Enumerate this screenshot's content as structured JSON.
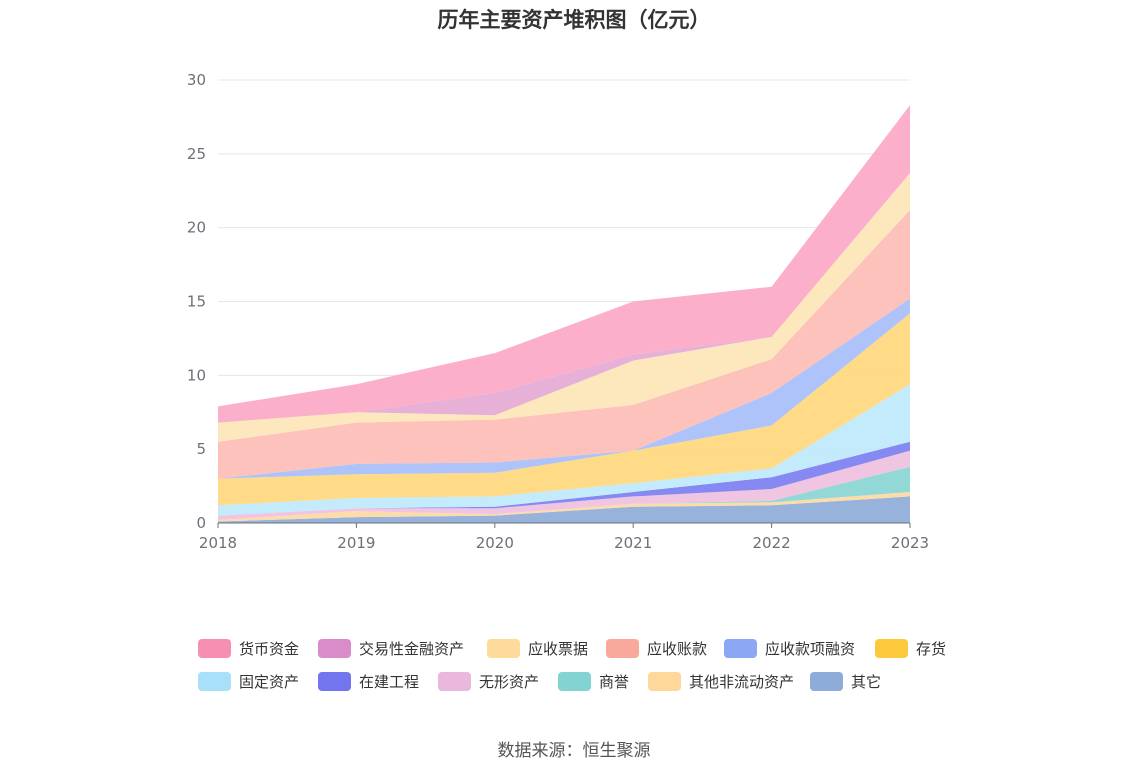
{
  "chart_data": {
    "type": "area",
    "stacked": true,
    "title": "历年主要资产堆积图（亿元）",
    "xlabel": "",
    "ylabel": "",
    "x": [
      "2018",
      "2019",
      "2020",
      "2021",
      "2022",
      "2023"
    ],
    "ylim": [
      0,
      30
    ],
    "yticks": [
      0,
      5,
      10,
      15,
      20,
      25,
      30
    ],
    "grid": true,
    "legend_position": "bottom",
    "series": [
      {
        "name": "其它",
        "color": "#8eacd8",
        "values": [
          0.1,
          0.4,
          0.5,
          1.1,
          1.2,
          1.8
        ]
      },
      {
        "name": "其他非流动资产",
        "color": "#fdd9a3",
        "values": [
          0.1,
          0.4,
          0.1,
          0.2,
          0.2,
          0.3
        ]
      },
      {
        "name": "商誉",
        "color": "#88d5d4",
        "values": [
          0.0,
          0.0,
          0.0,
          0.0,
          0.1,
          1.7
        ]
      },
      {
        "name": "无形资产",
        "color": "#efc0df",
        "values": [
          0.3,
          0.2,
          0.4,
          0.5,
          0.8,
          1.1
        ]
      },
      {
        "name": "在建工程",
        "color": "#7b7ff0",
        "values": [
          0.0,
          0.0,
          0.1,
          0.3,
          0.8,
          0.6
        ]
      },
      {
        "name": "固定资产",
        "color": "#bfe9fb",
        "values": [
          0.7,
          0.7,
          0.7,
          0.6,
          0.6,
          3.9
        ]
      },
      {
        "name": "存货",
        "color": "#ffd77d",
        "values": [
          1.8,
          1.6,
          1.6,
          2.2,
          2.9,
          4.8
        ]
      },
      {
        "name": "应收款项融资",
        "color": "#a6bef9",
        "values": [
          0.0,
          0.7,
          0.7,
          0.0,
          2.2,
          1.0
        ]
      },
      {
        "name": "应收账款",
        "color": "#fdbdb5",
        "values": [
          2.5,
          2.8,
          2.9,
          3.1,
          2.3,
          6.0
        ]
      },
      {
        "name": "应收票据",
        "color": "#fde6b9",
        "values": [
          1.3,
          0.7,
          0.3,
          3.0,
          1.5,
          2.5
        ]
      },
      {
        "name": "交易性金融资产",
        "color": "#e4a9d4",
        "values": [
          0.0,
          0.0,
          1.5,
          0.4,
          0.0,
          0.0
        ]
      },
      {
        "name": "货币资金",
        "color": "#fba8c5",
        "values": [
          1.1,
          1.9,
          2.7,
          3.6,
          3.4,
          4.6
        ]
      }
    ]
  },
  "legend_order": [
    "货币资金",
    "交易性金融资产",
    "应收票据",
    "应收账款",
    "应收款项融资",
    "存货",
    "固定资产",
    "在建工程",
    "无形资产",
    "商誉",
    "其他非流动资产",
    "其它"
  ],
  "legend_colors": {
    "货币资金": "#f78fb3",
    "交易性金融资产": "#d98cc7",
    "应收票据": "#fedb9b",
    "应收账款": "#f9a89c",
    "应收款项融资": "#8ca8f5",
    "存货": "#fdc93c",
    "固定资产": "#a8e0f9",
    "在建工程": "#7375ee",
    "无形资产": "#eab8dc",
    "商誉": "#84d3d3",
    "其他非流动资产": "#fed79a",
    "其它": "#8eacd8"
  },
  "source": "数据来源：恒生聚源"
}
